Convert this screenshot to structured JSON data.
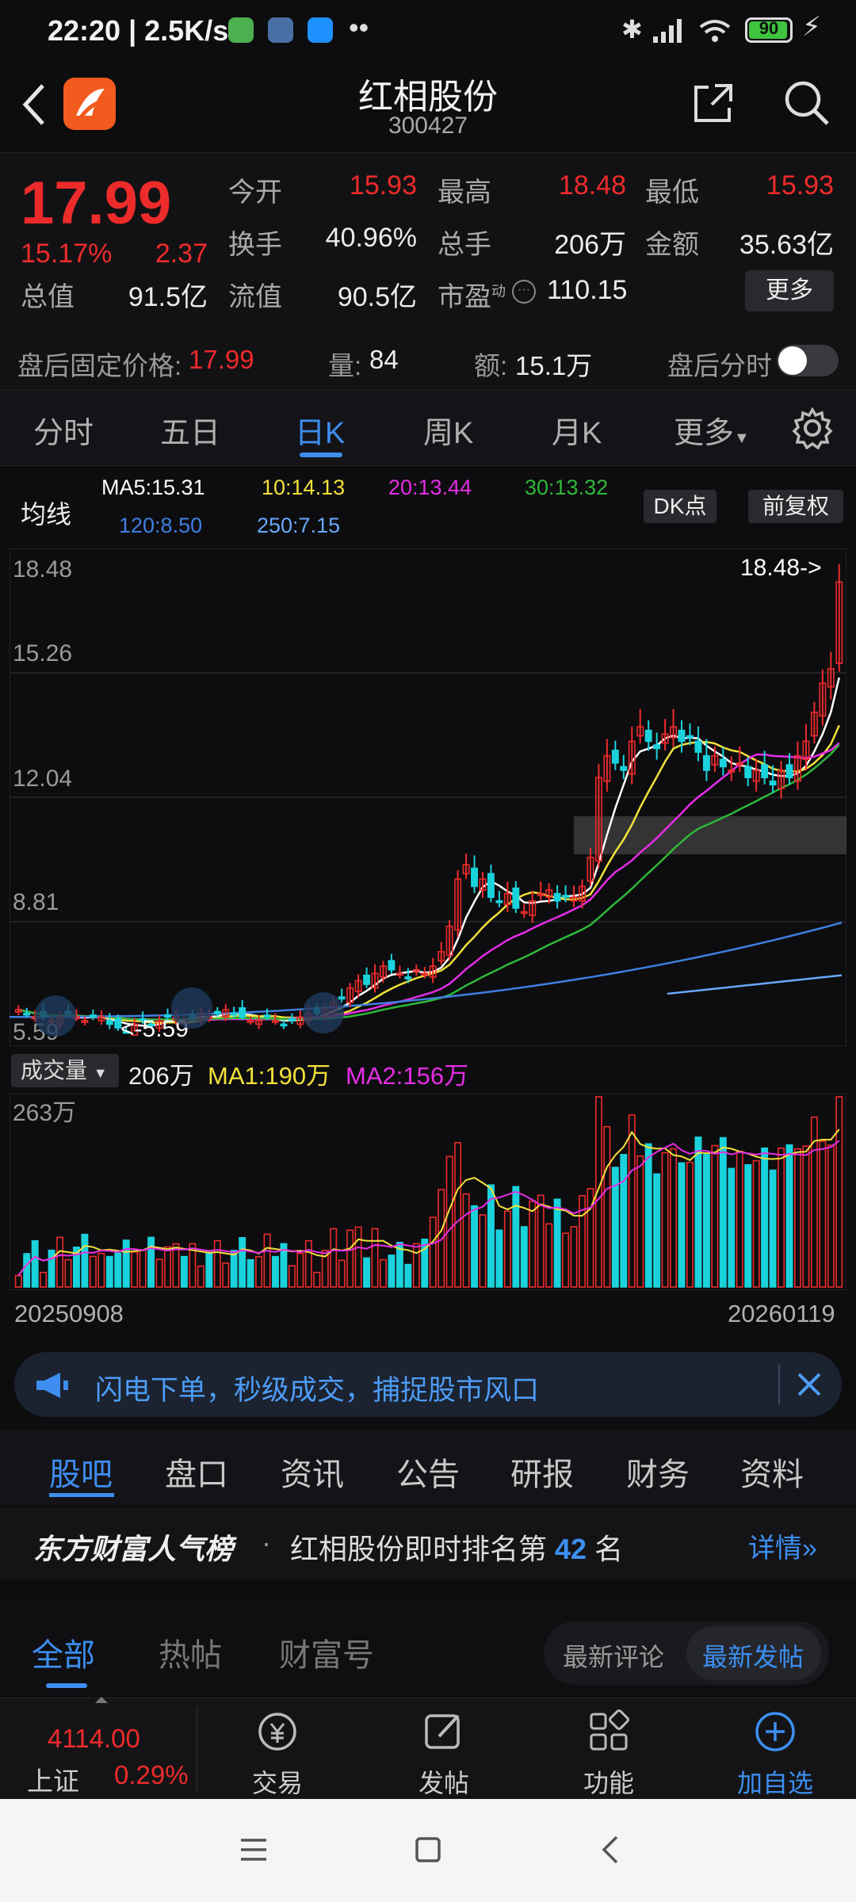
{
  "status_bar": {
    "time": "22:20",
    "net_speed": "2.5K/s",
    "battery": "90"
  },
  "header": {
    "name": "红相股份",
    "code": "300427"
  },
  "quote": {
    "price": "17.99",
    "change_pct": "15.17%",
    "change": "2.37",
    "rows": [
      [
        {
          "label": "今开",
          "value": "15.93",
          "color": "red"
        },
        {
          "label": "最高",
          "value": "18.48",
          "color": "red"
        },
        {
          "label": "最低",
          "value": "15.93",
          "color": "red"
        }
      ],
      [
        {
          "label": "换手",
          "value": "40.96%",
          "color": "white"
        },
        {
          "label": "总手",
          "value": "206万",
          "color": "white"
        },
        {
          "label": "金额",
          "value": "35.63亿",
          "color": "white"
        }
      ]
    ],
    "total_value_label": "总值",
    "total_value": "91.5亿",
    "float_value_label": "流值",
    "float_value": "90.5亿",
    "pe_label": "市盈",
    "pe_sup": "动",
    "pe_value": "110.15",
    "more_label": "更多"
  },
  "after_hours": {
    "price_label": "盘后固定价格:",
    "price": "17.99",
    "vol_label": "量:",
    "vol": "84",
    "amount_label": "额:",
    "amount": "15.1万",
    "toggle_label": "盘后分时"
  },
  "ktabs": [
    "分时",
    "五日",
    "日K",
    "周K",
    "月K",
    "更多"
  ],
  "ktab_active": 2,
  "ma_legend": {
    "title": "均线",
    "ma5": "MA5:15.31",
    "ma10": "10:14.13",
    "ma20": "20:13.44",
    "ma30": "30:13.32",
    "ma120": "120:8.50",
    "ma250": "250:7.15",
    "dk_label": "DK点",
    "fq_label": "前复权"
  },
  "colors": {
    "ma5": "#ffffff",
    "ma10": "#f2e13a",
    "ma20": "#e62de6",
    "ma30": "#2fb83a",
    "ma120": "#3f7fe0",
    "ma250": "#6aa8ff",
    "up": "#ee2b2b",
    "down": "#1ad2dc"
  },
  "chart_data": {
    "type": "candlestick",
    "y_labels": [
      "18.48",
      "15.26",
      "12.04",
      "8.81",
      "5.59"
    ],
    "ylim": [
      5.59,
      18.48
    ],
    "high_annotation": "18.48->",
    "low_annotation": "<-5.59",
    "start_date": "20250908",
    "end_date": "20260119",
    "candles_approx_close": [
      6.2,
      6.1,
      6.0,
      6.0,
      5.9,
      6.0,
      6.1,
      6.0,
      5.9,
      6.0,
      6.0,
      5.8,
      5.7,
      5.6,
      5.8,
      5.9,
      5.8,
      5.9,
      6.0,
      6.0,
      5.9,
      6.0,
      6.1,
      6.0,
      6.1,
      6.2,
      6.1,
      6.0,
      5.9,
      5.9,
      6.0,
      5.9,
      5.8,
      5.9,
      6.0,
      6.1,
      6.1,
      6.2,
      6.4,
      6.5,
      6.8,
      7.0,
      6.9,
      7.2,
      7.4,
      7.3,
      7.2,
      7.1,
      7.3,
      7.2,
      7.4,
      7.8,
      8.5,
      9.8,
      10.2,
      9.6,
      9.8,
      9.3,
      9.2,
      9.4,
      9.0,
      8.9,
      9.2,
      9.4,
      9.5,
      9.2,
      9.3,
      9.3,
      9.6,
      10.4,
      12.6,
      13.2,
      13.0,
      12.8,
      13.6,
      14.0,
      13.6,
      13.4,
      13.8,
      14.0,
      13.6,
      13.7,
      13.3,
      12.8,
      13.2,
      12.9,
      12.8,
      13.0,
      12.6,
      12.8,
      12.6,
      12.4,
      12.8,
      12.6,
      13.2,
      13.6,
      14.4,
      15.2,
      15.6,
      17.99
    ]
  },
  "volume": {
    "selector_label": "成交量",
    "value": "206万",
    "ma1": "MA1:190万",
    "ma2": "MA2:156万",
    "max_label": "263万"
  },
  "banner": {
    "text": "闪电下单，秒级成交，捕捉股市风口"
  },
  "subtabs": [
    "股吧",
    "盘口",
    "资讯",
    "公告",
    "研报",
    "财务",
    "资料"
  ],
  "subtab_active": 0,
  "rank": {
    "brand": "东方财富人气榜",
    "text_before": "红相股份即时排名第",
    "rank": "42",
    "text_after": "名",
    "detail": "详情"
  },
  "feed": {
    "tabs": [
      "全部",
      "热帖",
      "财富号"
    ],
    "active": 0,
    "sort_options": [
      "最新评论",
      "最新发帖"
    ],
    "sort_active": 1
  },
  "bottom": {
    "index_value": "4114.00",
    "index_name": "上证",
    "index_change": "0.29%",
    "actions": [
      {
        "label": "交易",
        "icon": "trade-icon"
      },
      {
        "label": "发帖",
        "icon": "post-icon"
      },
      {
        "label": "功能",
        "icon": "grid-icon"
      },
      {
        "label": "加自选",
        "icon": "add-icon"
      }
    ]
  }
}
